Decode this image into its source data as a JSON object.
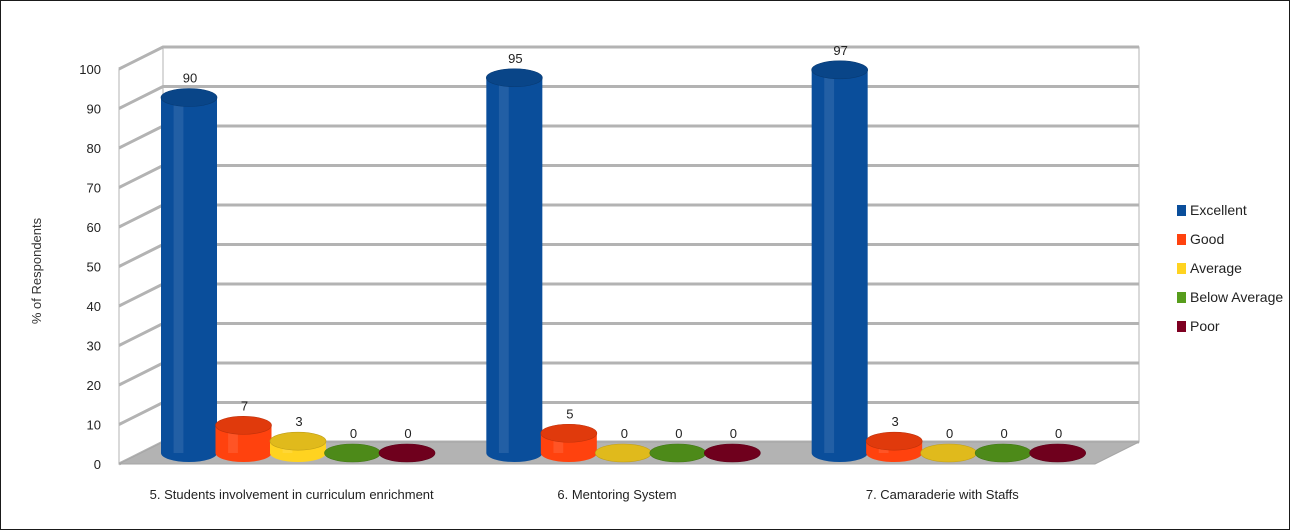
{
  "chart_data": {
    "type": "bar",
    "title": "",
    "xlabel": "",
    "ylabel": "% of Respondents",
    "ylim": [
      0,
      100
    ],
    "yticks": [
      0,
      10,
      20,
      30,
      40,
      50,
      60,
      70,
      80,
      90,
      100
    ],
    "grid": true,
    "legend_position": "right",
    "categories": [
      "5. Students involvement in curriculum enrichment",
      "6. Mentoring System",
      "7. Camaraderie with Staffs"
    ],
    "series": [
      {
        "name": "Excellent",
        "color": "#0a4e9b",
        "values": [
          90,
          95,
          97
        ]
      },
      {
        "name": "Good",
        "color": "#ff420e",
        "values": [
          7,
          5,
          3
        ]
      },
      {
        "name": "Average",
        "color": "#ffd320",
        "values": [
          3,
          0,
          0
        ]
      },
      {
        "name": "Below Average",
        "color": "#579d1c",
        "values": [
          0,
          0,
          0
        ]
      },
      {
        "name": "Poor",
        "color": "#7e0021",
        "values": [
          0,
          0,
          0
        ]
      }
    ]
  }
}
